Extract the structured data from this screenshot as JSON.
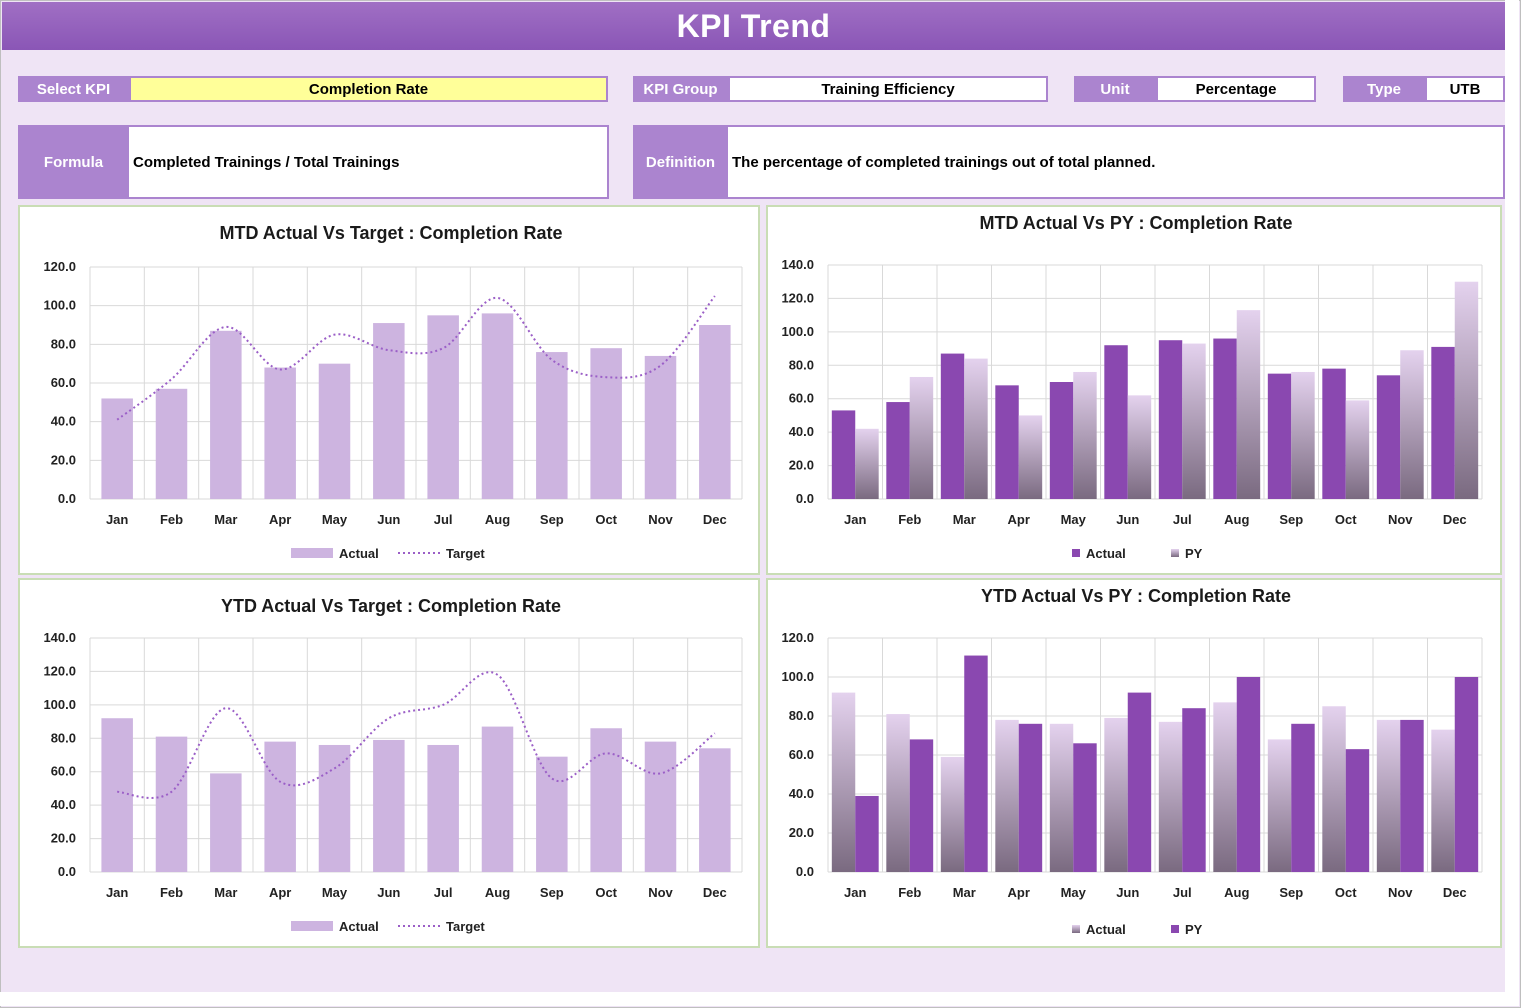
{
  "header": {
    "title": "KPI Trend"
  },
  "selectors": {
    "select_kpi": {
      "label": "Select KPI",
      "value": "Completion Rate"
    },
    "kpi_group": {
      "label": "KPI Group",
      "value": "Training Efficiency"
    },
    "unit": {
      "label": "Unit",
      "value": "Percentage"
    },
    "type": {
      "label": "Type",
      "value": "UTB"
    }
  },
  "formula": {
    "label": "Formula",
    "value": "Completed Trainings / Total Trainings"
  },
  "definition": {
    "label": "Definition",
    "value": "The percentage of completed trainings out of total planned."
  },
  "colors": {
    "actual_light": "#cdb4e0",
    "target_line": "#9b5fc7",
    "actual_dark": "#8a48b0",
    "py_gradient_top": "#e4d2ee",
    "py_gradient_bottom": "#7a6a80",
    "grid": "#d9d9d9"
  },
  "chart_data": [
    {
      "id": "mtd_target",
      "type": "bar+line",
      "title": "MTD Actual Vs Target : Completion Rate",
      "categories": [
        "Jan",
        "Feb",
        "Mar",
        "Apr",
        "May",
        "Jun",
        "Jul",
        "Aug",
        "Sep",
        "Oct",
        "Nov",
        "Dec"
      ],
      "yticks": [
        "0.0",
        "20.0",
        "40.0",
        "60.0",
        "80.0",
        "100.0",
        "120.0"
      ],
      "ylim": [
        0,
        120
      ],
      "series": [
        {
          "name": "Actual",
          "kind": "bar",
          "values": [
            52,
            57,
            87,
            68,
            70,
            91,
            95,
            96,
            76,
            78,
            74,
            90
          ]
        },
        {
          "name": "Target",
          "kind": "line",
          "values": [
            41,
            62,
            89,
            67,
            85,
            77,
            78,
            104,
            72,
            63,
            69,
            105
          ]
        }
      ],
      "legend": "bottom"
    },
    {
      "id": "mtd_py",
      "type": "bar",
      "title": "MTD Actual Vs PY : Completion Rate",
      "categories": [
        "Jan",
        "Feb",
        "Mar",
        "Apr",
        "May",
        "Jun",
        "Jul",
        "Aug",
        "Sep",
        "Oct",
        "Nov",
        "Dec"
      ],
      "yticks": [
        "0.0",
        "20.0",
        "40.0",
        "60.0",
        "80.0",
        "100.0",
        "120.0",
        "140.0"
      ],
      "ylim": [
        0,
        140
      ],
      "series": [
        {
          "name": "Actual",
          "kind": "bar-solid",
          "values": [
            53,
            58,
            87,
            68,
            70,
            92,
            95,
            96,
            75,
            78,
            74,
            91
          ]
        },
        {
          "name": "PY",
          "kind": "bar-gradient",
          "values": [
            42,
            73,
            84,
            50,
            76,
            62,
            93,
            113,
            76,
            59,
            89,
            130
          ]
        }
      ],
      "legend": "bottom"
    },
    {
      "id": "ytd_target",
      "type": "bar+line",
      "title": "YTD Actual Vs Target : Completion Rate",
      "categories": [
        "Jan",
        "Feb",
        "Mar",
        "Apr",
        "May",
        "Jun",
        "Jul",
        "Aug",
        "Sep",
        "Oct",
        "Nov",
        "Dec"
      ],
      "yticks": [
        "0.0",
        "20.0",
        "40.0",
        "60.0",
        "80.0",
        "100.0",
        "120.0",
        "140.0"
      ],
      "ylim": [
        0,
        140
      ],
      "series": [
        {
          "name": "Actual",
          "kind": "bar",
          "values": [
            92,
            81,
            59,
            78,
            76,
            79,
            76,
            87,
            69,
            86,
            78,
            74
          ]
        },
        {
          "name": "Target",
          "kind": "line",
          "values": [
            48,
            48,
            98,
            54,
            62,
            92,
            100,
            118,
            56,
            71,
            59,
            83
          ]
        }
      ],
      "legend": "bottom"
    },
    {
      "id": "ytd_py",
      "type": "bar",
      "title": "YTD Actual Vs PY : Completion Rate",
      "categories": [
        "Jan",
        "Feb",
        "Mar",
        "Apr",
        "May",
        "Jun",
        "Jul",
        "Aug",
        "Sep",
        "Oct",
        "Nov",
        "Dec"
      ],
      "yticks": [
        "0.0",
        "20.0",
        "40.0",
        "60.0",
        "80.0",
        "100.0",
        "120.0"
      ],
      "ylim": [
        0,
        120
      ],
      "series": [
        {
          "name": "Actual",
          "kind": "bar-gradient",
          "values": [
            92,
            81,
            59,
            78,
            76,
            79,
            77,
            87,
            68,
            85,
            78,
            73
          ]
        },
        {
          "name": "PY",
          "kind": "bar-solid",
          "values": [
            39,
            68,
            111,
            76,
            66,
            92,
            84,
            100,
            76,
            63,
            78,
            100
          ]
        }
      ],
      "legend": "bottom"
    }
  ]
}
